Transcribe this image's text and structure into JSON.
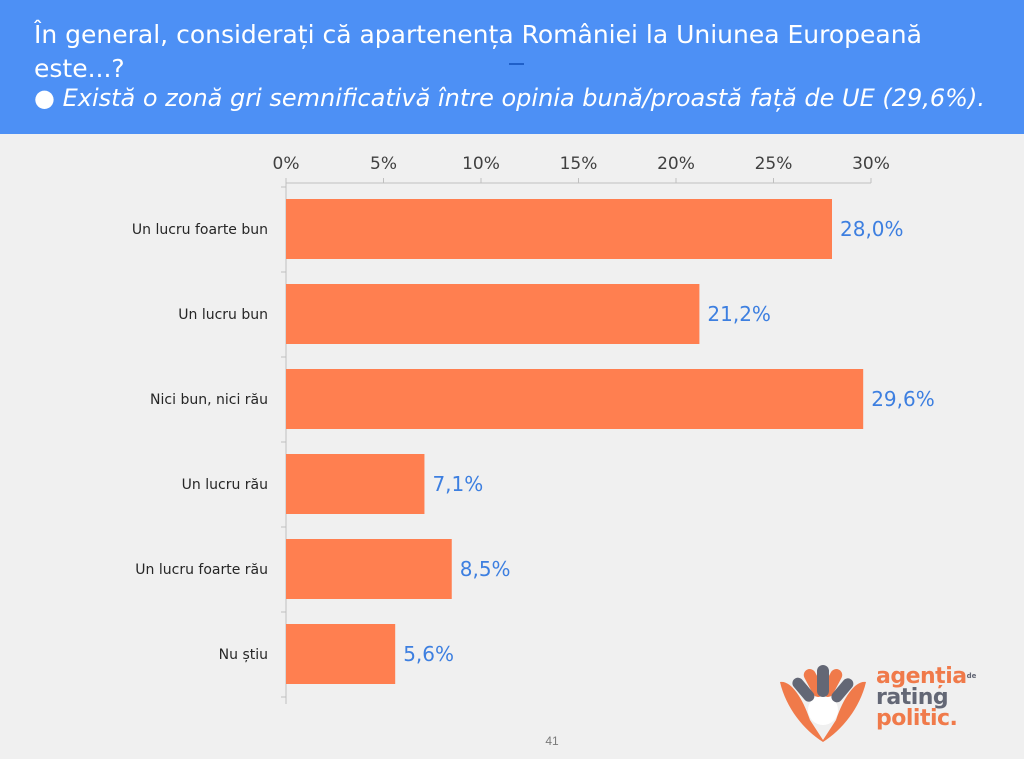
{
  "header": {
    "question_line1": "În general, considerați că apartenența României la Uniunea Europeană",
    "question_line2": "este...?",
    "insight": "● Există o zonă gri semnificativă între opinia bună/proastă față de UE (29,6%)."
  },
  "colors": {
    "header_bg": "#4d90f5",
    "bar": "#ff7f50",
    "value_label": "#3d7fe0",
    "background": "#f0f0f0",
    "logo_orange": "#f07a4a",
    "logo_gray": "#636775"
  },
  "chart_data": {
    "type": "bar",
    "orientation": "horizontal",
    "categories": [
      "Un lucru foarte bun",
      "Un lucru bun",
      "Nici bun, nici rău",
      "Un lucru rău",
      "Un lucru foarte rău",
      "Nu știu"
    ],
    "values": [
      28.0,
      21.2,
      29.6,
      7.1,
      8.5,
      5.6
    ],
    "value_labels": [
      "28,0%",
      "21,2%",
      "29,6%",
      "7,1%",
      "8,5%",
      "5,6%"
    ],
    "x_ticks": [
      "0%",
      "5%",
      "10%",
      "15%",
      "20%",
      "25%",
      "30%"
    ],
    "xlim": [
      0,
      30
    ],
    "axis_position": "top",
    "grid": false
  },
  "footer": {
    "page_number": "41"
  },
  "logo": {
    "word1": "agenția",
    "small": "de",
    "word2": "rating",
    "word3": "politic."
  }
}
